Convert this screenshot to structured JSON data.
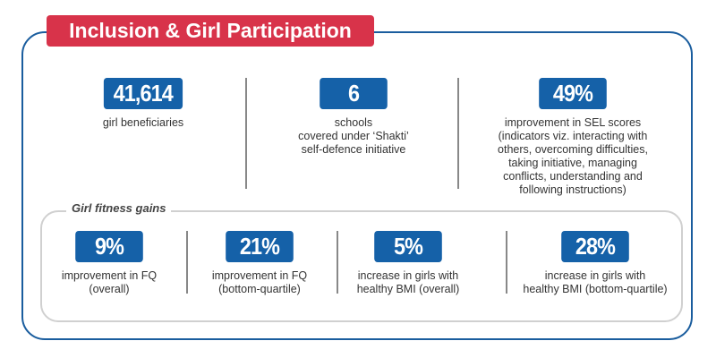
{
  "title": "Inclusion & Girl Participation",
  "top_stats": [
    {
      "value": "41,614",
      "label": "girl beneficiaries"
    },
    {
      "value": "6",
      "label": "schools\ncovered under ‘Shakti’\nself-defence initiative"
    },
    {
      "value": "49%",
      "label": "improvement in SEL scores\n(indicators viz. interacting with\nothers, overcoming difficulties,\ntaking initiative, managing\nconflicts, understanding and\nfollowing instructions)"
    }
  ],
  "fitness": {
    "heading": "Girl fitness gains",
    "stats": [
      {
        "value": "9%",
        "label": "improvement in FQ\n(overall)"
      },
      {
        "value": "21%",
        "label": "improvement in FQ\n(bottom-quartile)"
      },
      {
        "value": "5%",
        "label": "increase in girls with\nhealthy BMI (overall)"
      },
      {
        "value": "28%",
        "label": "increase in girls with\nhealthy BMI (bottom-quartile)"
      }
    ]
  },
  "colors": {
    "brand_blue": "#1561a8",
    "title_red": "#d8334a"
  }
}
